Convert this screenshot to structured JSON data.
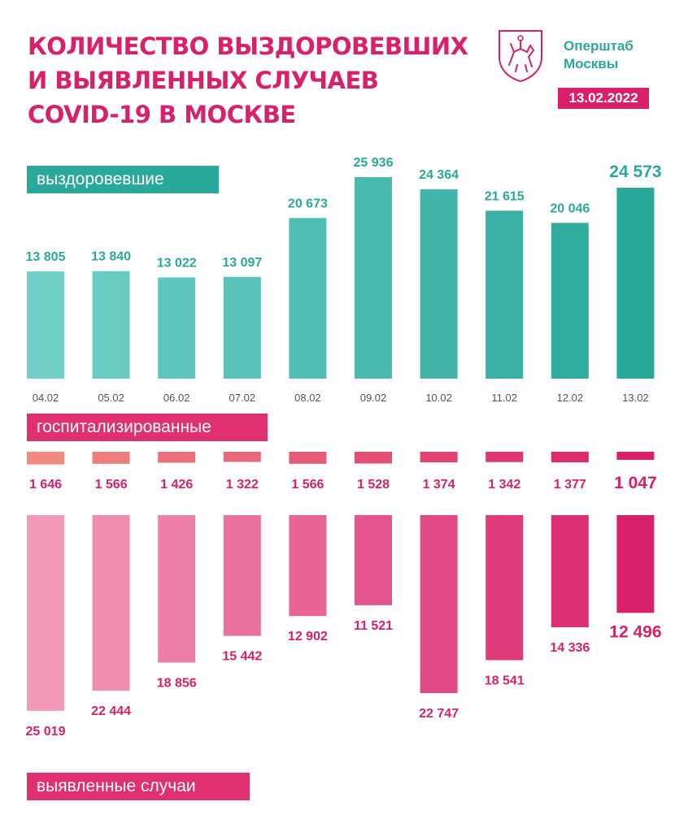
{
  "title_lines": [
    "Количество выздоровевших",
    "и выявленных случаев",
    "COVID-19 в Москве"
  ],
  "org_lines": [
    "Оперштаб",
    "Москвы"
  ],
  "date": "13.02.2022",
  "labels": {
    "recovered": "выздоровевшие",
    "hospitalized": "госпитализированные",
    "cases": "выявленные случаи"
  },
  "icons": {
    "logo": "moscow-coat-of-arms-icon"
  },
  "colors": {
    "brand_pink": "#d9206a",
    "teal": "#2aa89a",
    "teal_light": "#70d0c8",
    "pink_light": "#f29ab8",
    "hosp_start": "#f08a80"
  },
  "chart_data": {
    "type": "bar",
    "categories": [
      "04.02",
      "05.02",
      "06.02",
      "07.02",
      "08.02",
      "09.02",
      "10.02",
      "11.02",
      "12.02",
      "13.02"
    ],
    "series": [
      {
        "name": "выздоровевшие",
        "values": [
          13805,
          13840,
          13022,
          13097,
          20673,
          25936,
          24364,
          21615,
          20046,
          24573
        ],
        "labels": [
          "13 805",
          "13 840",
          "13 022",
          "13 097",
          "20 673",
          "25 936",
          "24 364",
          "21 615",
          "20 046",
          "24 573"
        ]
      },
      {
        "name": "госпитализированные",
        "values": [
          1646,
          1566,
          1426,
          1322,
          1566,
          1528,
          1374,
          1342,
          1377,
          1047
        ],
        "labels": [
          "1 646",
          "1 566",
          "1 426",
          "1 322",
          "1 566",
          "1 528",
          "1 374",
          "1 342",
          "1 377",
          "1 047"
        ]
      },
      {
        "name": "выявленные случаи",
        "values": [
          25019,
          22444,
          18856,
          15442,
          12902,
          11521,
          22747,
          18541,
          14336,
          12496
        ],
        "labels": [
          "25 019",
          "22 444",
          "18 856",
          "15 442",
          "12 902",
          "11 521",
          "22 747",
          "18 541",
          "14 336",
          "12 496"
        ]
      }
    ]
  }
}
